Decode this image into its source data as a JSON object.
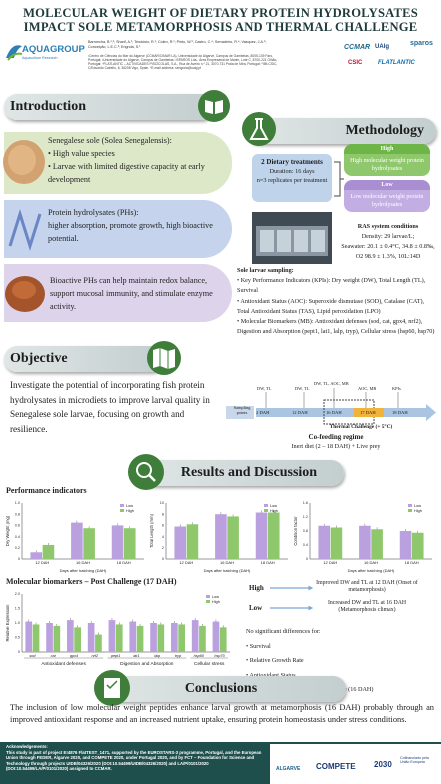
{
  "header": {
    "title_line1": "MOLECULAR WEIGHT OF DIETARY PROTEIN HYDROLYSATES",
    "title_line2": "IMPACT SOLE METAMORPHOSIS AND THERMAL CHALLENGE",
    "authors": "Barroncha, B.¹,²; Sharif, A.¹; Teodósio, R.¹; Colen, R.¹; Pinto, W.³; Castro, C.⁴; Serradeiro, R.⁴; Vasquez, J.A.⁵; Conceição, L.E.C.³; Engrola, S.¹",
    "affiliations": "¹Centro de Ciências do Mar do Algarve (CCMAR/CIMAR LA), Universidade do Algarve, Campus de Gambelas, 8005-139 Faro, Portugal; ²Universidade do Algarve, Campus de Gambelas; ³SPAROS Lda., Área Empresarial de Marim, Lote C, 8700-221 Olhão, Portugal; ⁴FLATLANTIC – ACTIVIDADES PISCÍCOLAS, S.A., Rua de Aveiro n.º 21, 3070-731 Praia de Mira, Portugal; ⁵IIM-CSIC, C/Eduardo Cabello, 6, 36208 Vigo, Spain. *E-mail address: sengrola@ualg.pt",
    "logo_aquagroup": "AQUAGROUP",
    "logo_aquagroup_sub": "Aquaculture Research",
    "logo_ccmar": "CCMAR",
    "logo_ualg": "UAlg",
    "logo_sparos": "sparos",
    "logo_csic": "CSIC",
    "logo_flatlantic": "FLATLANTIC"
  },
  "introduction": {
    "heading": "Introduction",
    "box1_intro": "Senegalese sole (Solea Senegalensis):",
    "box1_bullets": [
      "High value species",
      "Larvae with limited digestive capacity at early development"
    ],
    "box2_lines": [
      "Protein hydrolysates (PHs):",
      "higher absorption, promote growth, high bioactive potential."
    ],
    "box3_text": "Bioactive PHs can help maintain redox balance, support mucosal immunity, and stimulate enzyme activity."
  },
  "objective": {
    "heading": "Objective",
    "text": "Investigate the potential of incorporating fish protein hydrolysates in microdiets to improve larval quality in Senegalese sole larvae, focusing on growth and resilience."
  },
  "methodology": {
    "heading": "Methodology",
    "treatments_title": "2 Dietary treatments",
    "duration": "Duration: 16 days",
    "replicates": "n=3 replicates per treatment",
    "high_label": "High",
    "high_desc": "High molecular weight protein hydrolysates",
    "low_label": "Low",
    "low_desc": "Low molecular weight protein hydrolysates",
    "ras_title": "RAS system conditions",
    "ras_density": "Density: 29 larvae/L;",
    "ras_seawater": "Seawater: 20.1 ± 0.4°C, 34.8 ± 0.8‰,",
    "ras_o2": "O2 98.9 ± 1.3%, 10L:14D",
    "sampling_title": "Sole larvae sampling:",
    "sampling_items": [
      "Key Performance Indicators (KPIs): Dry weight (DW), Total Length (TL), Survival",
      "Antioxidant Status (AOC): Superoxide dismutase (SOD), Catalase (CAT), Total Antioxidant Status (TAS), Lipid peroxidation (LPO)",
      "Molecular Biomarkers (MB): Antioxidant defenses (sod, cat, gpx4, nrf2), Digestion and Absorption (pept1, lat1, lalp, tryp), Cellular stress (hsp60, hsp70)"
    ],
    "timeline_left": "Sampling points",
    "timeline_marks": [
      "2 DAH",
      "12 DAH",
      "16 DAH",
      "17 DAH",
      "18 DAH"
    ],
    "timeline_top": [
      "DW, TL",
      "DW, TL",
      "DW, TL, AOC, MB",
      "AOC, MB",
      "KPIs"
    ],
    "thermal": "Thermal Challenge (+ 5°C)",
    "cofeeding_title": "Co-feeding regime",
    "cofeeding_sub": "Inert diet (2 – 18 DAH) + Live prey"
  },
  "results": {
    "heading": "Results and Discussion",
    "performance_title": "Performance indicators",
    "molecular_title": "Molecular biomarkers – Post Challenge (17 DAH)",
    "legend_low": "Low",
    "legend_high": "High",
    "high_label": "High",
    "low_label": "Low",
    "high_result": "Improved DW and TL at 12 DAH (Onset of metamorphosis)",
    "low_result": "Increased DW and TL at 16 DAH (Metamorphosis climax)",
    "no_diff_title": "No significant differences for:",
    "no_diff_items": [
      "Survival",
      "Relative Growth Rate",
      "Antioxidant Status",
      "Molecular Biomarkers – Pre Challenge (16 DAH)"
    ],
    "mb_groups": [
      "Antioxidant defenses",
      "Digestion and Absorption",
      "Cellular stress"
    ]
  },
  "conclusions": {
    "heading": "Conclusions",
    "text": "The inclusion of low molecular weight peptides enhance larval growth at metamorphosis (16 DAH) probably through an improved antioxidant response and an increased nutrient uptake, ensuring protein homeostasis under stress conditions."
  },
  "acknowledgements": {
    "title": "Acknowledgements:",
    "text": "This study is part of project E!4876 FlatTEST_1471, supported by the EUROSTARS-3 programme, Portugal, and the European Union through FEDER, Algarve 2020, and COMPETE 2020, under Portugal 2020, and by FCT – Foundation for Science and Technology through projects UIDB/04326/2020 (DOI:10.54499/UIDB/04326/2020) and LA/P/0101/2020 (DOI:10.54499/LA/P/0101/2020) assigned to CCMAR.",
    "logo_algarve": "ALGARVE",
    "logo_compete": "COMPETE",
    "logo_2030": "2030",
    "logo_eu": "Cofinanciado pela União Europeia"
  },
  "chart_data": [
    {
      "type": "bar",
      "categories": [
        "12 DAH",
        "16 DAH",
        "18 DAH"
      ],
      "xlabel": "Days after hatching (DAH)",
      "ylabel": "Dry Weight (mg)",
      "series": [
        {
          "name": "Low",
          "values": [
            0.12,
            0.65,
            0.6
          ]
        },
        {
          "name": "High",
          "values": [
            0.25,
            0.55,
            0.55
          ]
        }
      ],
      "ylim": [
        0,
        1.0
      ],
      "yticks": [
        "0",
        "0.2",
        "0.4",
        "0.6",
        "0.8",
        "1.0"
      ]
    },
    {
      "type": "bar",
      "categories": [
        "12 DAH",
        "16 DAH",
        "18 DAH"
      ],
      "xlabel": "Days after hatching (DAH)",
      "ylabel": "Total Length (mm)",
      "series": [
        {
          "name": "Low",
          "values": [
            5.8,
            8.0,
            8.3
          ]
        },
        {
          "name": "High",
          "values": [
            6.2,
            7.6,
            8.3
          ]
        }
      ],
      "ylim": [
        0,
        10
      ],
      "yticks": [
        "0",
        "2",
        "4",
        "6",
        "8",
        "10"
      ]
    },
    {
      "type": "bar",
      "categories": [
        "12 DAH",
        "16 DAH",
        "18 DAH"
      ],
      "xlabel": "Days after hatching (DAH)",
      "ylabel": "Condition factor",
      "series": [
        {
          "name": "Low",
          "values": [
            0.95,
            0.95,
            0.8
          ]
        },
        {
          "name": "High",
          "values": [
            0.9,
            0.85,
            0.75
          ]
        }
      ],
      "ylim": [
        0,
        1.6
      ],
      "yticks": [
        "0",
        "0.4",
        "0.8",
        "1.2",
        "1.6"
      ]
    },
    {
      "type": "bar",
      "categories": [
        "sod",
        "cat",
        "gpx4",
        "nrf2",
        "pept1",
        "lat1",
        "lalp",
        "tryp",
        "hsp60",
        "hsp70"
      ],
      "ylabel": "Relative Expression",
      "series": [
        {
          "name": "Low",
          "values": [
            1.05,
            1.0,
            1.1,
            1.0,
            1.1,
            1.05,
            1.0,
            1.0,
            1.1,
            1.05
          ]
        },
        {
          "name": "High",
          "values": [
            0.95,
            0.9,
            0.85,
            0.6,
            0.95,
            0.9,
            0.95,
            0.95,
            0.9,
            0.85
          ]
        }
      ],
      "ylim": [
        0,
        2.0
      ],
      "yticks": [
        "0",
        "0.5",
        "1.0",
        "1.5",
        "2.0"
      ]
    }
  ]
}
